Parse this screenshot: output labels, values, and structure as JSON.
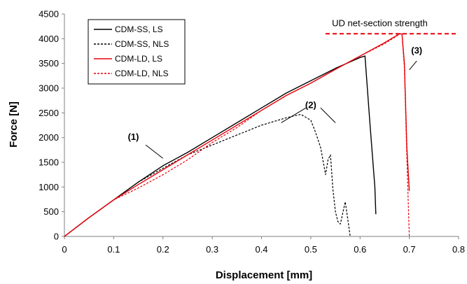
{
  "chart_data": {
    "type": "line",
    "title": "",
    "xlabel": "Displacement [mm]",
    "ylabel": "Force [N]",
    "xlim": [
      0,
      0.8
    ],
    "ylim": [
      0,
      4500
    ],
    "x_ticks": [
      "0",
      "0.1",
      "0.2",
      "0.3",
      "0.4",
      "0.5",
      "0.6",
      "0.7",
      "0.8"
    ],
    "y_ticks": [
      "0",
      "500",
      "1000",
      "1500",
      "2000",
      "2500",
      "3000",
      "3500",
      "4000",
      "4500"
    ],
    "grid": false,
    "legend_position": "top-left",
    "series": [
      {
        "name": "CDM-SS, LS",
        "color": "#000000",
        "style": "solid",
        "x": [
          0,
          0.05,
          0.1,
          0.15,
          0.2,
          0.25,
          0.3,
          0.35,
          0.4,
          0.45,
          0.5,
          0.55,
          0.6,
          0.61,
          0.62,
          0.63,
          0.632
        ],
        "y": [
          0,
          380,
          740,
          1100,
          1430,
          1700,
          2000,
          2300,
          2600,
          2900,
          3150,
          3400,
          3620,
          3650,
          2300,
          1000,
          450
        ]
      },
      {
        "name": "CDM-SS, NLS",
        "color": "#000000",
        "style": "dashed",
        "x": [
          0,
          0.05,
          0.1,
          0.15,
          0.2,
          0.25,
          0.3,
          0.35,
          0.4,
          0.45,
          0.48,
          0.5,
          0.51,
          0.52,
          0.53,
          0.535,
          0.54,
          0.545,
          0.55,
          0.555,
          0.56,
          0.57,
          0.575,
          0.58
        ],
        "y": [
          0,
          380,
          740,
          1100,
          1380,
          1650,
          1850,
          2050,
          2250,
          2400,
          2470,
          2350,
          2100,
          1800,
          1250,
          1550,
          1650,
          950,
          500,
          300,
          250,
          700,
          350,
          0
        ]
      },
      {
        "name": "CDM-LD, LS",
        "color": "#e8000b",
        "style": "solid",
        "x": [
          0,
          0.05,
          0.1,
          0.15,
          0.2,
          0.25,
          0.3,
          0.35,
          0.4,
          0.45,
          0.5,
          0.55,
          0.6,
          0.65,
          0.68,
          0.685,
          0.69,
          0.695,
          0.7
        ],
        "y": [
          0,
          380,
          740,
          1050,
          1350,
          1650,
          1950,
          2250,
          2550,
          2850,
          3100,
          3380,
          3650,
          3920,
          4100,
          4100,
          3500,
          1800,
          920
        ]
      },
      {
        "name": "CDM-LD, NLS",
        "color": "#e8000b",
        "style": "dashed",
        "x": [
          0,
          0.05,
          0.1,
          0.15,
          0.2,
          0.25,
          0.3,
          0.35,
          0.4,
          0.45,
          0.5,
          0.55,
          0.6,
          0.65,
          0.68,
          0.685,
          0.69,
          0.695,
          0.7
        ],
        "y": [
          0,
          380,
          740,
          980,
          1250,
          1550,
          1900,
          2200,
          2550,
          2850,
          3100,
          3380,
          3650,
          3900,
          4090,
          4100,
          3400,
          1600,
          0
        ]
      }
    ],
    "reference_line": {
      "label": "UD net-section strength",
      "y": 4100,
      "x_range": [
        0.53,
        0.8
      ],
      "color": "#e8000b",
      "style": "dashed"
    },
    "annotations": [
      {
        "text": "(1)",
        "x": 0.14,
        "y": 1950,
        "line": [
          [
            0.165,
            1850
          ],
          [
            0.2,
            1580
          ]
        ]
      },
      {
        "text": "(2)",
        "x": 0.5,
        "y": 2600,
        "line_a": [
          [
            0.49,
            2600
          ],
          [
            0.44,
            2300
          ]
        ],
        "line_b": [
          [
            0.52,
            2600
          ],
          [
            0.55,
            2300
          ]
        ]
      },
      {
        "text": "(3)",
        "x": 0.715,
        "y": 3700,
        "line": [
          [
            0.715,
            3550
          ],
          [
            0.7,
            3370
          ]
        ]
      }
    ]
  }
}
